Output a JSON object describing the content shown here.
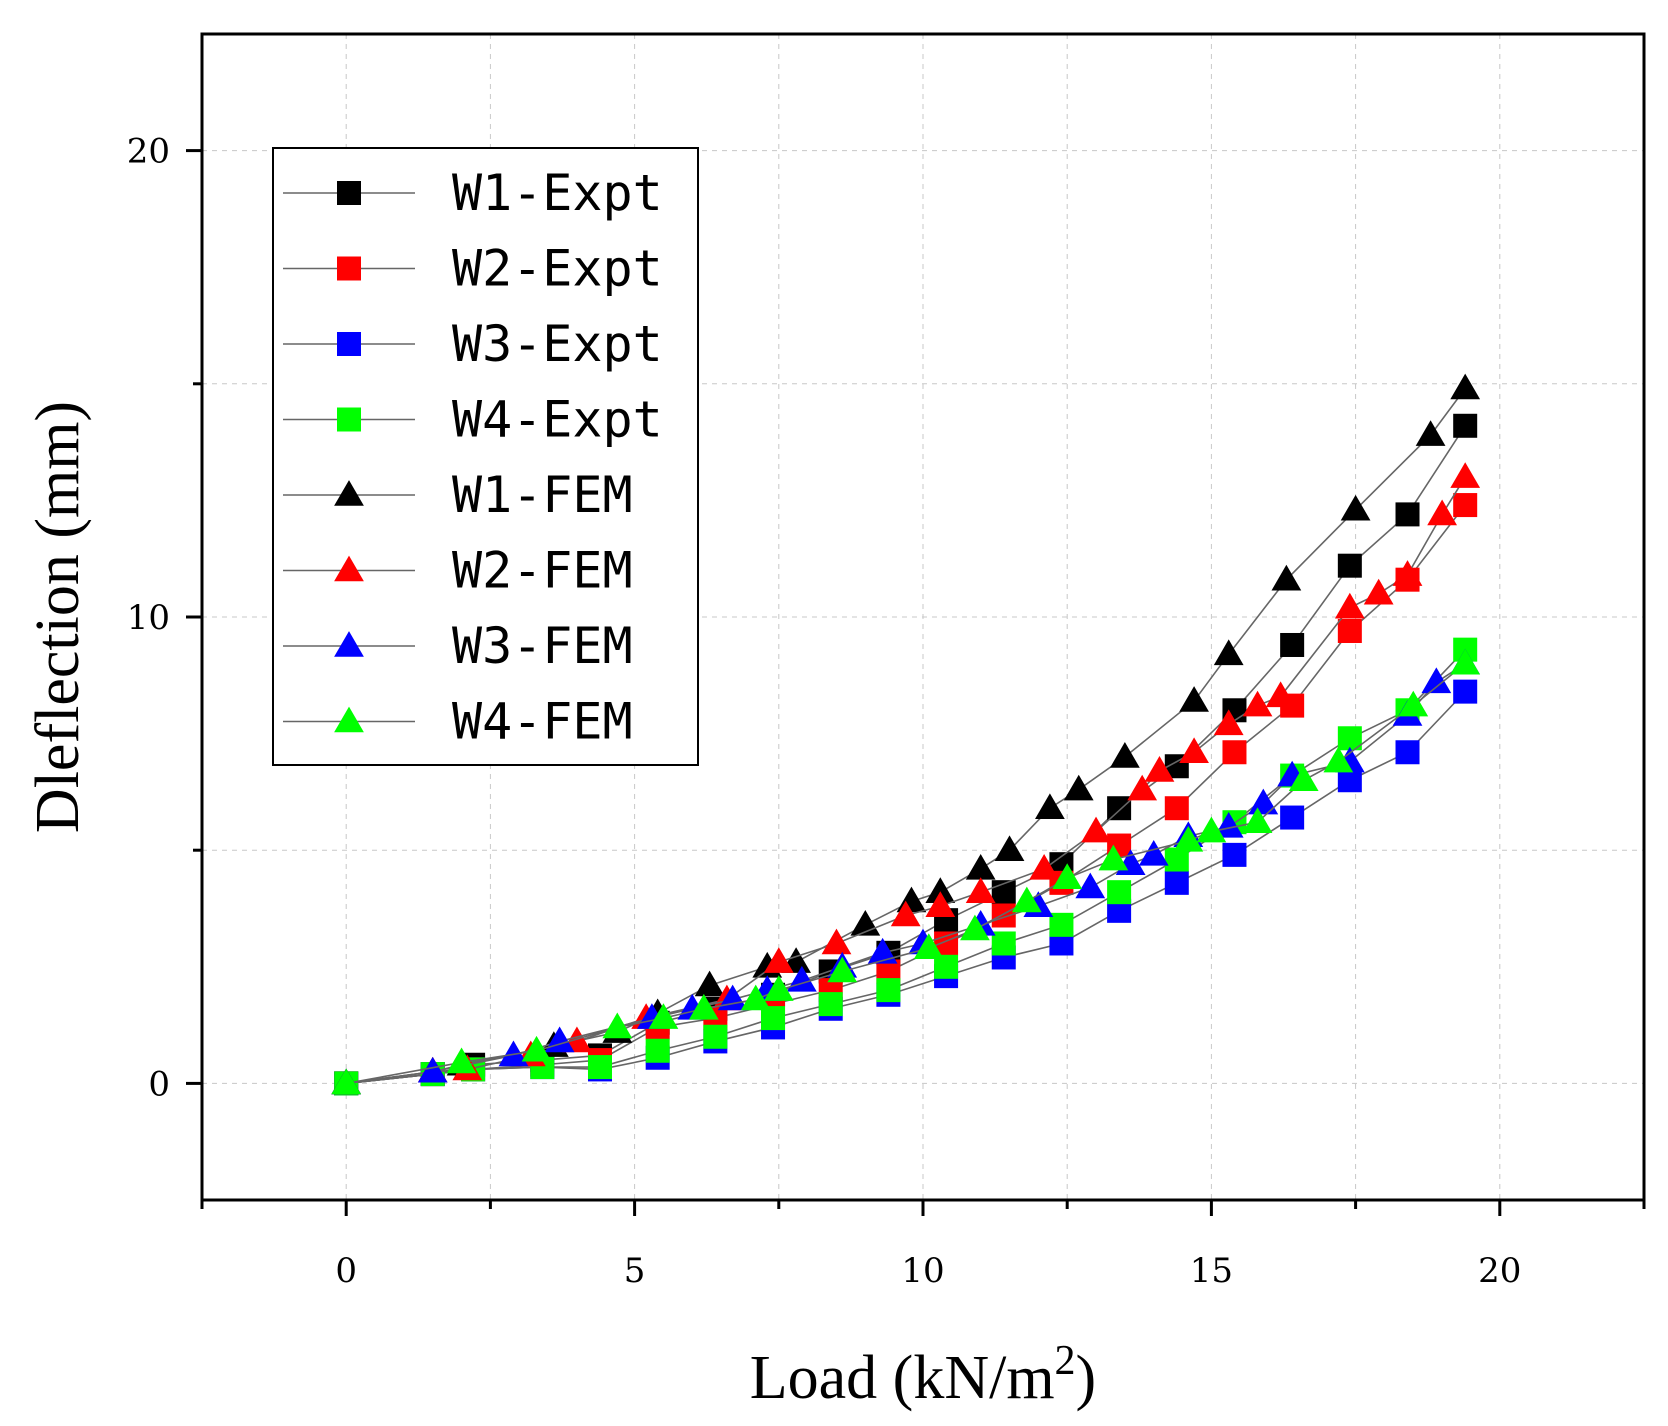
{
  "chart_data": {
    "type": "line",
    "xlabel": "Load (kN/m",
    "xlabel_sup": "2",
    "xlabel_end": ")",
    "ylabel": "Dleflection (mm)",
    "xlim": [
      -2.5,
      22.5
    ],
    "ylim": [
      -2.5,
      22.5
    ],
    "xticks": [
      0,
      5,
      10,
      15,
      20
    ],
    "yticks": [
      0,
      10,
      20
    ],
    "grid": true,
    "legend_position": "top-left",
    "series": [
      {
        "name": "W1-Expt",
        "color": "#000000",
        "marker": "square",
        "x": [
          0,
          1.5,
          2.2,
          3.4,
          4.4,
          5.4,
          6.4,
          7.4,
          8.4,
          9.4,
          10.4,
          11.4,
          12.4,
          13.4,
          14.4,
          15.4,
          16.4,
          17.4,
          18.4,
          19.4
        ],
        "y": [
          0,
          0.2,
          0.4,
          0.5,
          0.6,
          1.3,
          1.6,
          1.9,
          2.4,
          2.8,
          3.5,
          4.1,
          4.7,
          5.9,
          6.8,
          8.0,
          9.4,
          11.1,
          12.2,
          14.1
        ]
      },
      {
        "name": "W2-Expt",
        "color": "#ff0000",
        "marker": "square",
        "x": [
          0,
          1.5,
          2.2,
          3.4,
          4.4,
          5.4,
          6.4,
          7.4,
          8.4,
          9.4,
          10.4,
          11.4,
          12.4,
          13.4,
          14.4,
          15.4,
          16.4,
          17.4,
          18.4,
          19.4
        ],
        "y": [
          0,
          0.2,
          0.3,
          0.4,
          0.5,
          1.2,
          1.4,
          1.7,
          2.0,
          2.4,
          3.0,
          3.6,
          4.3,
          5.1,
          5.9,
          7.1,
          8.1,
          9.7,
          10.8,
          12.4
        ]
      },
      {
        "name": "W3-Expt",
        "color": "#0000ff",
        "marker": "square",
        "x": [
          0,
          1.5,
          2.2,
          3.4,
          4.4,
          5.4,
          6.4,
          7.4,
          8.4,
          9.4,
          10.4,
          11.4,
          12.4,
          13.4,
          14.4,
          15.4,
          16.4,
          17.4,
          18.4,
          19.4
        ],
        "y": [
          0,
          0.2,
          0.3,
          0.35,
          0.3,
          0.55,
          0.9,
          1.2,
          1.6,
          1.9,
          2.3,
          2.7,
          3.0,
          3.7,
          4.3,
          4.9,
          5.7,
          6.5,
          7.1,
          8.4
        ]
      },
      {
        "name": "W4-Expt",
        "color": "#00ff00",
        "marker": "square",
        "x": [
          0,
          1.5,
          2.2,
          3.4,
          4.4,
          5.4,
          6.4,
          7.4,
          8.4,
          9.4,
          10.4,
          11.4,
          12.4,
          13.4,
          14.4,
          15.4,
          16.4,
          17.4,
          18.4,
          19.4
        ],
        "y": [
          0,
          0.2,
          0.3,
          0.35,
          0.35,
          0.7,
          1.0,
          1.4,
          1.7,
          2.0,
          2.5,
          3.0,
          3.4,
          4.1,
          4.8,
          5.6,
          6.6,
          7.4,
          8.0,
          9.3
        ]
      },
      {
        "name": "W1-FEM",
        "color": "#000000",
        "marker": "triangle",
        "x": [
          0,
          1.5,
          2.0,
          3.6,
          4.7,
          5.4,
          6.3,
          7.3,
          7.8,
          9.0,
          9.8,
          10.3,
          11.0,
          11.5,
          12.2,
          12.7,
          13.5,
          14.7,
          15.3,
          16.3,
          17.5,
          18.8,
          19.4
        ],
        "y": [
          0,
          0.25,
          0.4,
          0.8,
          1.1,
          1.5,
          2.1,
          2.5,
          2.6,
          3.4,
          3.9,
          4.1,
          4.6,
          5.0,
          5.9,
          6.3,
          7.0,
          8.2,
          9.2,
          10.8,
          12.3,
          13.9,
          14.9
        ]
      },
      {
        "name": "W2-FEM",
        "color": "#ff0000",
        "marker": "triangle",
        "x": [
          0,
          1.5,
          2.1,
          3.2,
          4.0,
          5.2,
          6.6,
          7.5,
          8.5,
          9.7,
          10.3,
          11.0,
          12.1,
          13.0,
          13.8,
          14.1,
          14.7,
          15.3,
          15.8,
          16.2,
          17.4,
          17.9,
          18.4,
          19.0,
          19.4
        ],
        "y": [
          0,
          0.25,
          0.3,
          0.6,
          0.9,
          1.4,
          1.8,
          2.6,
          3.0,
          3.6,
          3.8,
          4.1,
          4.6,
          5.4,
          6.3,
          6.7,
          7.1,
          7.7,
          8.1,
          8.3,
          10.2,
          10.5,
          10.9,
          12.2,
          13.0
        ]
      },
      {
        "name": "W3-FEM",
        "color": "#0000ff",
        "marker": "triangle",
        "x": [
          0,
          1.5,
          2.9,
          3.7,
          5.3,
          6.0,
          6.7,
          7.3,
          7.9,
          8.6,
          9.3,
          10.0,
          11.0,
          12.0,
          12.9,
          13.6,
          14.0,
          14.6,
          15.3,
          15.9,
          16.4,
          17.4,
          18.4,
          18.9,
          19.4
        ],
        "y": [
          0,
          0.25,
          0.6,
          0.9,
          1.4,
          1.6,
          1.8,
          2.0,
          2.2,
          2.5,
          2.8,
          3.0,
          3.4,
          3.8,
          4.2,
          4.7,
          4.9,
          5.3,
          5.5,
          6.0,
          6.6,
          6.9,
          7.9,
          8.6,
          9.0
        ]
      },
      {
        "name": "W4-FEM",
        "color": "#00ff00",
        "marker": "triangle",
        "x": [
          0,
          2.0,
          3.3,
          4.7,
          5.5,
          6.2,
          7.1,
          7.5,
          8.6,
          10.1,
          10.9,
          11.8,
          12.5,
          13.3,
          14.6,
          15.0,
          15.8,
          16.6,
          17.2,
          18.5,
          19.4
        ],
        "y": [
          0,
          0.45,
          0.7,
          1.2,
          1.4,
          1.6,
          1.8,
          2.0,
          2.4,
          2.9,
          3.3,
          3.9,
          4.4,
          4.8,
          5.2,
          5.4,
          5.6,
          6.5,
          6.9,
          8.1,
          9.0
        ]
      }
    ]
  }
}
